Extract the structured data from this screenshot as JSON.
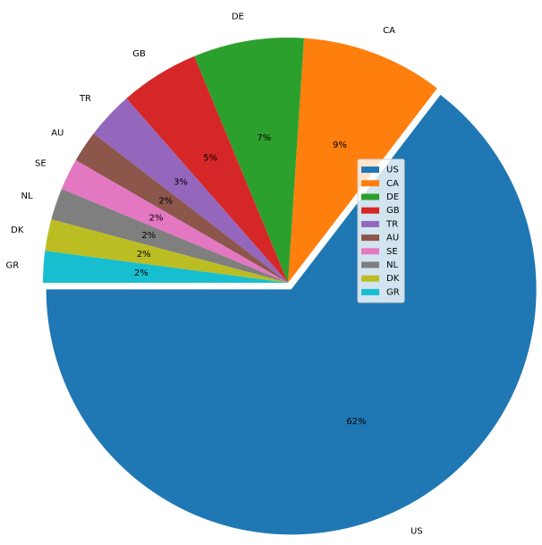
{
  "chart_data": {
    "type": "pie",
    "categories": [
      "US",
      "CA",
      "DE",
      "GB",
      "TR",
      "AU",
      "SE",
      "NL",
      "DK",
      "GR"
    ],
    "values": [
      62,
      9,
      7,
      5,
      3,
      2,
      2,
      2,
      2,
      2
    ],
    "percent_labels": [
      "62%",
      "9%",
      "7%",
      "5%",
      "3%",
      "2%",
      "2%",
      "2%",
      "2%",
      "2%"
    ],
    "colors": [
      "#1f77b4",
      "#ff7f0e",
      "#2ca02c",
      "#d62728",
      "#9467bd",
      "#8c564b",
      "#e377c2",
      "#7f7f7f",
      "#bcbd22",
      "#17becf"
    ],
    "exploded": [
      "US"
    ],
    "legend": {
      "entries": [
        "US",
        "CA",
        "DE",
        "GB",
        "TR",
        "AU",
        "SE",
        "NL",
        "DK",
        "GR"
      ],
      "placement": "center-right"
    }
  }
}
